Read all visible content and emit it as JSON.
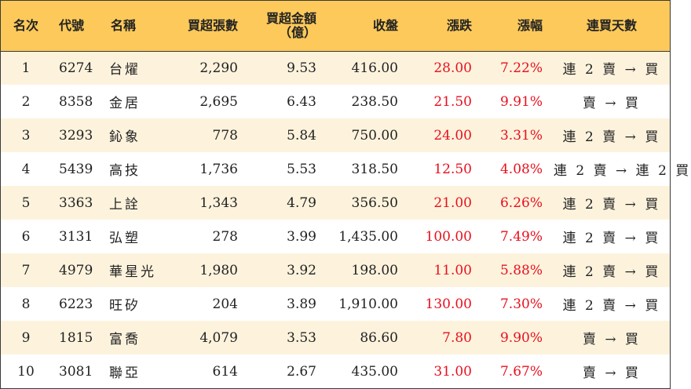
{
  "headers": {
    "rank": "名次",
    "code": "代號",
    "name": "名稱",
    "net_buy_lots": "買超張數",
    "net_buy_amount_line1": "買超金額",
    "net_buy_amount_line2": "（億）",
    "close": "收盤",
    "change": "漲跌",
    "change_pct": "漲幅",
    "consecutive_days": "連買天數"
  },
  "rows": [
    {
      "rank": "1",
      "code": "6274",
      "name": "台燿",
      "lots": "2,290",
      "amount": "9.53",
      "close": "416.00",
      "change": "28.00",
      "pct": "7.22%",
      "days": "連 2 賣 → 買"
    },
    {
      "rank": "2",
      "code": "8358",
      "name": "金居",
      "lots": "2,695",
      "amount": "6.43",
      "close": "238.50",
      "change": "21.50",
      "pct": "9.91%",
      "days": "賣 → 買"
    },
    {
      "rank": "3",
      "code": "3293",
      "name": "鈊象",
      "lots": "778",
      "amount": "5.84",
      "close": "750.00",
      "change": "24.00",
      "pct": "3.31%",
      "days": "連 2 賣 → 買"
    },
    {
      "rank": "4",
      "code": "5439",
      "name": "高技",
      "lots": "1,736",
      "amount": "5.53",
      "close": "318.50",
      "change": "12.50",
      "pct": "4.08%",
      "days": "連 2 賣 → 連 2 買"
    },
    {
      "rank": "5",
      "code": "3363",
      "name": "上詮",
      "lots": "1,343",
      "amount": "4.79",
      "close": "356.50",
      "change": "21.00",
      "pct": "6.26%",
      "days": "連 2 賣 → 買"
    },
    {
      "rank": "6",
      "code": "3131",
      "name": "弘塑",
      "lots": "278",
      "amount": "3.99",
      "close": "1,435.00",
      "change": "100.00",
      "pct": "7.49%",
      "days": "連 2 賣 → 買"
    },
    {
      "rank": "7",
      "code": "4979",
      "name": "華星光",
      "lots": "1,980",
      "amount": "3.92",
      "close": "198.00",
      "change": "11.00",
      "pct": "5.88%",
      "days": "連 2 賣 → 買"
    },
    {
      "rank": "8",
      "code": "6223",
      "name": "旺矽",
      "lots": "204",
      "amount": "3.89",
      "close": "1,910.00",
      "change": "130.00",
      "pct": "7.30%",
      "days": "連 2 賣 → 買"
    },
    {
      "rank": "9",
      "code": "1815",
      "name": "富喬",
      "lots": "4,079",
      "amount": "3.53",
      "close": "86.60",
      "change": "7.80",
      "pct": "9.90%",
      "days": "賣 → 買"
    },
    {
      "rank": "10",
      "code": "3081",
      "name": "聯亞",
      "lots": "614",
      "amount": "2.67",
      "close": "435.00",
      "change": "31.00",
      "pct": "7.67%",
      "days": "賣 → 買"
    }
  ],
  "colors": {
    "header_bg": "#fcc95a",
    "odd_row_bg": "#fdf3dd",
    "even_row_bg": "#ffffff",
    "up_red": "#e8101e"
  }
}
